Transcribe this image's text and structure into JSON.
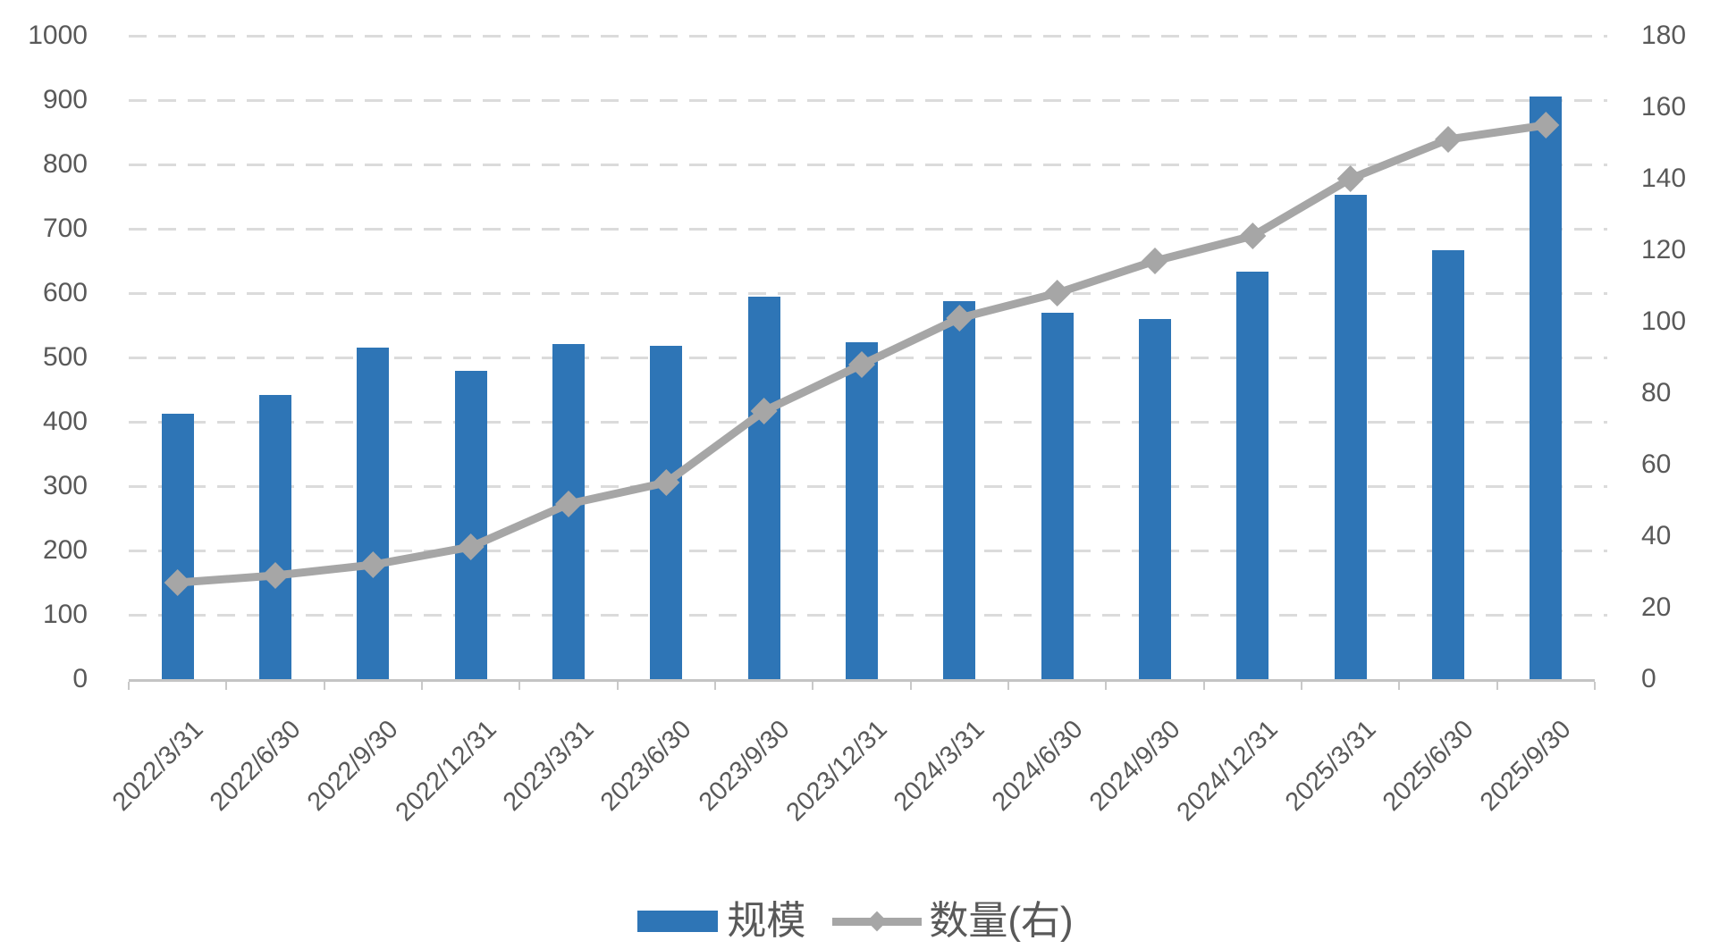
{
  "chart_data": {
    "type": "combo-bar-line",
    "title": "",
    "categories": [
      "2022/3/31",
      "2022/6/30",
      "2022/9/30",
      "2022/12/31",
      "2023/3/31",
      "2023/6/30",
      "2023/9/30",
      "2023/12/31",
      "2024/3/31",
      "2024/6/30",
      "2024/9/30",
      "2024/12/31",
      "2025/3/31",
      "2025/6/30",
      "2025/9/30"
    ],
    "series": [
      {
        "name": "规模",
        "type": "bar",
        "axis": "left",
        "color": "#2E75B6",
        "values": [
          412,
          442,
          515,
          479,
          521,
          518,
          594,
          524,
          588,
          570,
          560,
          634,
          753,
          666,
          905
        ]
      },
      {
        "name": "数量(右)",
        "type": "line",
        "axis": "right",
        "color": "#A6A6A6",
        "marker": "diamond",
        "values": [
          27,
          29,
          32,
          37,
          49,
          55,
          75,
          88,
          101,
          108,
          117,
          124,
          140,
          151,
          155
        ]
      }
    ],
    "left_axis": {
      "min": 0,
      "max": 1000,
      "step": 100,
      "tick_labels": [
        "1000",
        "900",
        "800",
        "700",
        "600",
        "500",
        "400",
        "300",
        "200",
        "100",
        "0"
      ]
    },
    "right_axis": {
      "min": 0,
      "max": 180,
      "step": 20,
      "tick_labels": [
        "180",
        "160",
        "140",
        "120",
        "100",
        "80",
        "60",
        "40",
        "20",
        "0"
      ]
    },
    "legend": {
      "position": "bottom"
    },
    "grid": {
      "horizontal": true,
      "style": "dashed",
      "color": "#DBDBDB"
    },
    "styles": {
      "bar_color": "#2E75B6",
      "line_color": "#A6A6A6",
      "text_color": "#595959",
      "axis_line_color": "#C4C4C4",
      "background": "#FFFFFF",
      "x_label_rotation_deg": -45
    }
  }
}
